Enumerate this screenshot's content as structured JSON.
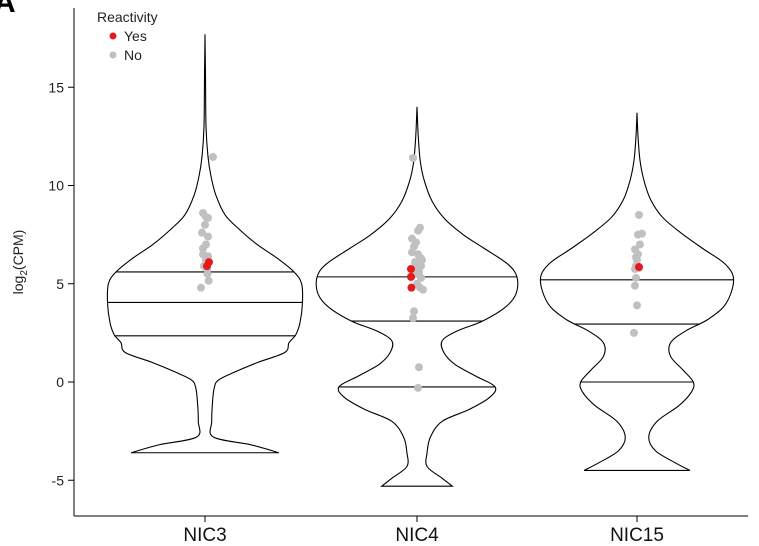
{
  "panel_letter": "A",
  "chart_data": {
    "type": "violin",
    "title": "",
    "xlabel": "",
    "ylabel": "log2(CPM)",
    "ylabel_parts": {
      "base": "log",
      "sub": "2",
      "rest": "(CPM)"
    },
    "ylim": [
      -6,
      18
    ],
    "yticks": [
      -5,
      0,
      5,
      10,
      15
    ],
    "categories": [
      "NIC3",
      "NIC4",
      "NIC15"
    ],
    "legend": {
      "title": "Reactivity",
      "placement": "top-left",
      "entries": [
        {
          "label": "Yes",
          "color": "#e41a1c"
        },
        {
          "label": "No",
          "color": "#c0c0c0"
        }
      ]
    },
    "violins": [
      {
        "category": "NIC3",
        "quartiles": [
          2.35,
          4.05,
          5.6
        ],
        "max": 17.7,
        "min": -3.6,
        "profile": [
          [
            -3.6,
            0.88
          ],
          [
            -3.2,
            0.55
          ],
          [
            -2.8,
            0.1
          ],
          [
            -2.0,
            0.08
          ],
          [
            -1.0,
            0.09
          ],
          [
            -0.3,
            0.11
          ],
          [
            0.1,
            0.16
          ],
          [
            0.5,
            0.35
          ],
          [
            1.0,
            0.63
          ],
          [
            1.5,
            0.95
          ],
          [
            2.0,
            1.0
          ],
          [
            2.4,
            1.08
          ],
          [
            3.0,
            1.13
          ],
          [
            4.0,
            1.16
          ],
          [
            5.0,
            1.15
          ],
          [
            5.6,
            1.06
          ],
          [
            6.3,
            0.86
          ],
          [
            7.0,
            0.62
          ],
          [
            7.8,
            0.4
          ],
          [
            8.5,
            0.24
          ],
          [
            9.5,
            0.13
          ],
          [
            10.5,
            0.07
          ],
          [
            11.5,
            0.035
          ],
          [
            13.0,
            0.012
          ],
          [
            15.5,
            0.006
          ],
          [
            17.7,
            0.0
          ]
        ],
        "points_no": [
          [
            0.4,
            11.45
          ],
          [
            -0.1,
            8.6
          ],
          [
            0.05,
            8.4
          ],
          [
            0.15,
            8.35
          ],
          [
            0.0,
            8.0
          ],
          [
            -0.15,
            7.6
          ],
          [
            0.15,
            7.4
          ],
          [
            0.05,
            7.0
          ],
          [
            -0.1,
            6.8
          ],
          [
            -0.1,
            6.5
          ],
          [
            0.15,
            6.4
          ],
          [
            0.05,
            6.2
          ],
          [
            -0.05,
            5.9
          ],
          [
            0.1,
            5.75
          ],
          [
            0.12,
            5.5
          ],
          [
            0.18,
            5.15
          ],
          [
            -0.2,
            4.8
          ]
        ],
        "points_yes": [
          [
            0.2,
            6.1
          ],
          [
            0.1,
            5.9
          ]
        ]
      },
      {
        "category": "NIC4",
        "quartiles": [
          -0.25,
          3.1,
          5.35
        ],
        "max": 14.0,
        "min": -5.3,
        "profile": [
          [
            -5.3,
            0.42
          ],
          [
            -4.9,
            0.3
          ],
          [
            -4.3,
            0.12
          ],
          [
            -3.6,
            0.12
          ],
          [
            -2.8,
            0.16
          ],
          [
            -2.0,
            0.3
          ],
          [
            -1.4,
            0.62
          ],
          [
            -0.8,
            0.86
          ],
          [
            -0.25,
            0.93
          ],
          [
            0.3,
            0.7
          ],
          [
            0.9,
            0.45
          ],
          [
            1.5,
            0.32
          ],
          [
            2.1,
            0.3
          ],
          [
            2.6,
            0.48
          ],
          [
            3.1,
            0.78
          ],
          [
            3.8,
            1.05
          ],
          [
            4.5,
            1.18
          ],
          [
            5.35,
            1.19
          ],
          [
            6.0,
            1.08
          ],
          [
            6.8,
            0.8
          ],
          [
            7.5,
            0.55
          ],
          [
            8.3,
            0.33
          ],
          [
            9.2,
            0.18
          ],
          [
            10.2,
            0.09
          ],
          [
            11.2,
            0.04
          ],
          [
            12.5,
            0.015
          ],
          [
            14.0,
            0.0
          ]
        ],
        "points_no": [
          [
            -0.2,
            11.4
          ],
          [
            0.15,
            7.85
          ],
          [
            0.05,
            7.7
          ],
          [
            -0.25,
            7.3
          ],
          [
            -0.05,
            7.1
          ],
          [
            -0.15,
            6.9
          ],
          [
            -0.25,
            6.6
          ],
          [
            0.05,
            6.5
          ],
          [
            0.2,
            6.3
          ],
          [
            0.1,
            6.2
          ],
          [
            0.25,
            6.2
          ],
          [
            -0.1,
            6.1
          ],
          [
            0.2,
            5.9
          ],
          [
            0.05,
            5.8
          ],
          [
            0.1,
            5.6
          ],
          [
            -0.05,
            5.5
          ],
          [
            0.2,
            5.3
          ],
          [
            0.0,
            5.0
          ],
          [
            0.15,
            4.8
          ],
          [
            0.3,
            4.7
          ],
          [
            -0.15,
            3.6
          ],
          [
            -0.2,
            3.25
          ],
          [
            0.1,
            0.75
          ],
          [
            0.05,
            -0.3
          ]
        ],
        "points_yes": [
          [
            -0.3,
            5.75
          ],
          [
            -0.3,
            5.35
          ],
          [
            -0.28,
            4.8
          ]
        ]
      },
      {
        "category": "NIC15",
        "quartiles": [
          0.0,
          2.95,
          5.2
        ],
        "max": 13.7,
        "min": -4.5,
        "profile": [
          [
            -4.5,
            0.63
          ],
          [
            -4.1,
            0.45
          ],
          [
            -3.5,
            0.22
          ],
          [
            -2.8,
            0.14
          ],
          [
            -2.0,
            0.24
          ],
          [
            -1.2,
            0.5
          ],
          [
            -0.5,
            0.65
          ],
          [
            0.0,
            0.67
          ],
          [
            0.6,
            0.55
          ],
          [
            1.3,
            0.4
          ],
          [
            2.0,
            0.4
          ],
          [
            2.6,
            0.58
          ],
          [
            3.2,
            0.85
          ],
          [
            4.0,
            1.06
          ],
          [
            5.2,
            1.15
          ],
          [
            6.0,
            1.05
          ],
          [
            6.8,
            0.78
          ],
          [
            7.6,
            0.52
          ],
          [
            8.4,
            0.3
          ],
          [
            9.3,
            0.16
          ],
          [
            10.3,
            0.08
          ],
          [
            11.3,
            0.035
          ],
          [
            12.5,
            0.012
          ],
          [
            13.7,
            0.0
          ]
        ],
        "points_no": [
          [
            0.1,
            8.5
          ],
          [
            0.25,
            7.55
          ],
          [
            0.05,
            7.5
          ],
          [
            0.15,
            7.0
          ],
          [
            -0.1,
            6.75
          ],
          [
            0.05,
            6.5
          ],
          [
            -0.05,
            6.35
          ],
          [
            0.0,
            6.2
          ],
          [
            -0.05,
            5.9
          ],
          [
            0.1,
            5.8
          ],
          [
            -0.1,
            5.75
          ],
          [
            -0.05,
            5.3
          ],
          [
            -0.1,
            4.9
          ],
          [
            0.0,
            3.9
          ],
          [
            -0.15,
            2.5
          ]
        ],
        "points_yes": [
          [
            0.1,
            5.85
          ]
        ]
      }
    ]
  }
}
